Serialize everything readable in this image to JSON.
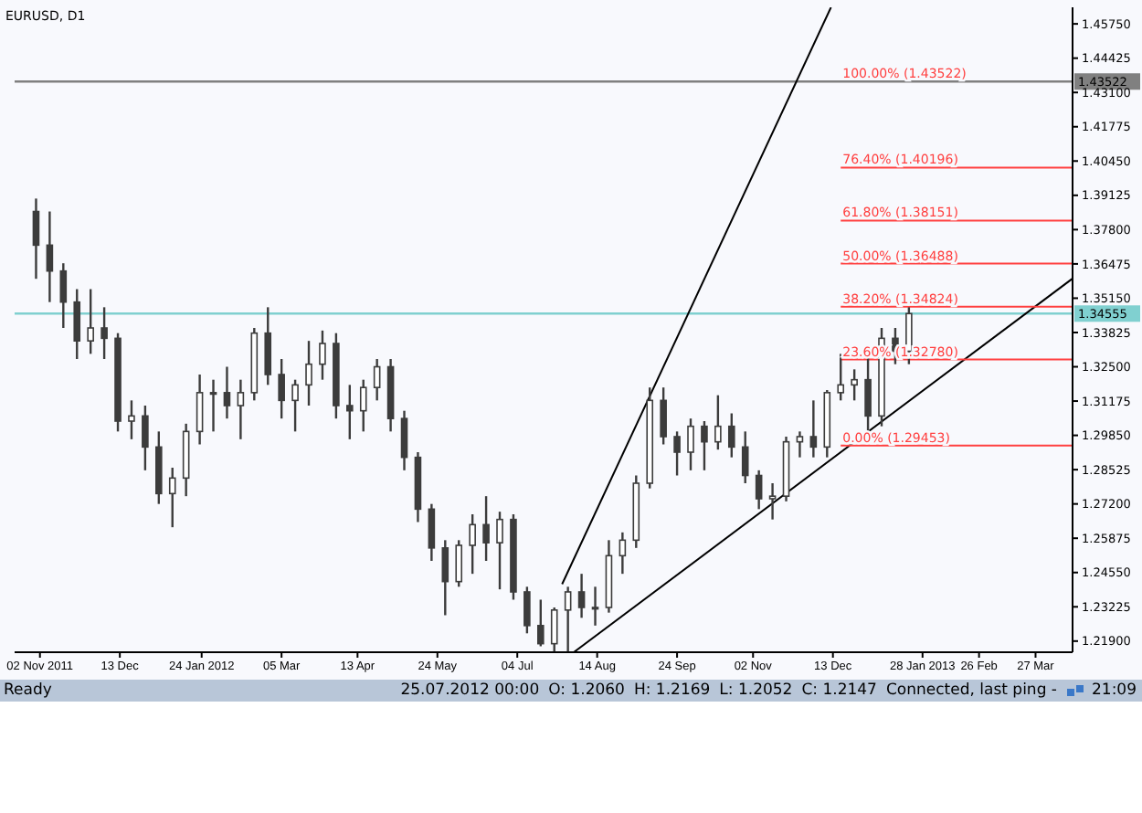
{
  "chart_data": {
    "type": "candlestick",
    "title": "EURUSD, D1",
    "color": "#3c3c3c",
    "x": [
      "2011-10-31",
      "2011-11-07",
      "2011-11-14",
      "2011-11-21",
      "2011-11-28",
      "2011-12-05",
      "2011-12-12",
      "2011-12-19",
      "2011-12-26",
      "2012-01-02",
      "2012-01-09",
      "2012-01-16",
      "2012-01-23",
      "2012-01-30",
      "2012-02-06",
      "2012-02-13",
      "2012-02-20",
      "2012-02-27",
      "2012-03-05",
      "2012-03-12",
      "2012-03-19",
      "2012-03-26",
      "2012-04-02",
      "2012-04-09",
      "2012-04-16",
      "2012-04-23",
      "2012-04-30",
      "2012-05-07",
      "2012-05-14",
      "2012-05-21",
      "2012-05-28",
      "2012-06-04",
      "2012-06-11",
      "2012-06-18",
      "2012-06-25",
      "2012-07-02",
      "2012-07-09",
      "2012-07-16",
      "2012-07-23",
      "2012-07-30",
      "2012-08-06",
      "2012-08-13",
      "2012-08-20",
      "2012-08-27",
      "2012-09-03",
      "2012-09-10",
      "2012-09-17",
      "2012-09-24",
      "2012-10-01",
      "2012-10-08",
      "2012-10-15",
      "2012-10-22",
      "2012-10-29",
      "2012-11-05",
      "2012-11-12",
      "2012-11-19",
      "2012-11-26",
      "2012-12-03",
      "2012-12-10",
      "2012-12-17",
      "2012-12-24",
      "2012-12-31",
      "2013-01-07",
      "2013-01-14",
      "2013-01-21"
    ],
    "ohlc": [
      [
        1.385,
        1.39,
        1.359,
        1.372
      ],
      [
        1.372,
        1.385,
        1.35,
        1.362
      ],
      [
        1.362,
        1.365,
        1.34,
        1.35
      ],
      [
        1.35,
        1.355,
        1.328,
        1.335
      ],
      [
        1.335,
        1.355,
        1.33,
        1.34
      ],
      [
        1.34,
        1.348,
        1.328,
        1.336
      ],
      [
        1.336,
        1.338,
        1.3,
        1.304
      ],
      [
        1.304,
        1.312,
        1.297,
        1.306
      ],
      [
        1.306,
        1.31,
        1.285,
        1.294
      ],
      [
        1.294,
        1.3,
        1.272,
        1.276
      ],
      [
        1.276,
        1.286,
        1.263,
        1.282
      ],
      [
        1.282,
        1.303,
        1.275,
        1.3
      ],
      [
        1.3,
        1.322,
        1.295,
        1.315
      ],
      [
        1.315,
        1.32,
        1.3,
        1.315
      ],
      [
        1.315,
        1.325,
        1.305,
        1.31
      ],
      [
        1.31,
        1.32,
        1.297,
        1.315
      ],
      [
        1.315,
        1.34,
        1.312,
        1.338
      ],
      [
        1.338,
        1.348,
        1.318,
        1.322
      ],
      [
        1.322,
        1.328,
        1.305,
        1.312
      ],
      [
        1.312,
        1.32,
        1.3,
        1.318
      ],
      [
        1.318,
        1.335,
        1.31,
        1.326
      ],
      [
        1.326,
        1.339,
        1.32,
        1.334
      ],
      [
        1.334,
        1.338,
        1.305,
        1.31
      ],
      [
        1.31,
        1.318,
        1.297,
        1.308
      ],
      [
        1.308,
        1.32,
        1.3,
        1.317
      ],
      [
        1.317,
        1.328,
        1.312,
        1.325
      ],
      [
        1.325,
        1.328,
        1.3,
        1.305
      ],
      [
        1.305,
        1.308,
        1.285,
        1.29
      ],
      [
        1.29,
        1.292,
        1.265,
        1.27
      ],
      [
        1.27,
        1.272,
        1.25,
        1.255
      ],
      [
        1.255,
        1.258,
        1.229,
        1.242
      ],
      [
        1.242,
        1.258,
        1.24,
        1.256
      ],
      [
        1.256,
        1.268,
        1.245,
        1.264
      ],
      [
        1.264,
        1.275,
        1.25,
        1.257
      ],
      [
        1.257,
        1.269,
        1.239,
        1.266
      ],
      [
        1.266,
        1.268,
        1.235,
        1.238
      ],
      [
        1.238,
        1.24,
        1.222,
        1.225
      ],
      [
        1.225,
        1.235,
        1.217,
        1.218
      ],
      [
        1.218,
        1.232,
        1.215,
        1.231
      ],
      [
        1.231,
        1.24,
        1.215,
        1.238
      ],
      [
        1.238,
        1.245,
        1.228,
        1.232
      ],
      [
        1.232,
        1.24,
        1.225,
        1.232
      ],
      [
        1.232,
        1.258,
        1.23,
        1.252
      ],
      [
        1.252,
        1.261,
        1.245,
        1.258
      ],
      [
        1.258,
        1.283,
        1.255,
        1.28
      ],
      [
        1.28,
        1.317,
        1.278,
        1.312
      ],
      [
        1.312,
        1.317,
        1.295,
        1.298
      ],
      [
        1.298,
        1.3,
        1.283,
        1.292
      ],
      [
        1.292,
        1.305,
        1.285,
        1.302
      ],
      [
        1.302,
        1.304,
        1.285,
        1.296
      ],
      [
        1.296,
        1.314,
        1.293,
        1.302
      ],
      [
        1.302,
        1.307,
        1.29,
        1.294
      ],
      [
        1.294,
        1.3,
        1.28,
        1.283
      ],
      [
        1.283,
        1.285,
        1.27,
        1.274
      ],
      [
        1.274,
        1.28,
        1.266,
        1.275
      ],
      [
        1.275,
        1.298,
        1.273,
        1.296
      ],
      [
        1.296,
        1.3,
        1.29,
        1.298
      ],
      [
        1.298,
        1.312,
        1.29,
        1.294
      ],
      [
        1.294,
        1.316,
        1.29,
        1.315
      ],
      [
        1.315,
        1.33,
        1.312,
        1.318
      ],
      [
        1.318,
        1.324,
        1.312,
        1.32
      ],
      [
        1.32,
        1.33,
        1.299,
        1.306
      ],
      [
        1.306,
        1.34,
        1.302,
        1.336
      ],
      [
        1.336,
        1.34,
        1.326,
        1.331
      ],
      [
        1.331,
        1.348,
        1.326,
        1.34555
      ]
    ],
    "series": [
      {
        "type": "line",
        "color": "#000000",
        "x": [
          "2012-07-27",
          "2012-12-12"
        ],
        "values": [
          1.241,
          1.4639
        ]
      },
      {
        "type": "line",
        "color": "#000000",
        "x": [
          "2012-08-02",
          "2013-04-15"
        ],
        "values": [
          1.2147,
          1.3591
        ]
      },
      {
        "type": "line",
        "name": "76.40% (1.40196)",
        "color": "#ff4040",
        "x": [
          "2012-12-17",
          "2013-04-15"
        ],
        "values": [
          1.40196,
          1.40196
        ]
      },
      {
        "type": "line",
        "name": "61.80% (1.38151)",
        "color": "#ff4040",
        "x": [
          "2012-12-17",
          "2013-04-15"
        ],
        "values": [
          1.38151,
          1.38151
        ]
      },
      {
        "type": "line",
        "name": "50.00% (1.36488)",
        "color": "#ff4040",
        "x": [
          "2012-12-17",
          "2013-04-15"
        ],
        "values": [
          1.36488,
          1.36488
        ]
      },
      {
        "type": "line",
        "name": "38.20% (1.34824)",
        "color": "#ff4040",
        "x": [
          "2012-12-17",
          "2013-04-15"
        ],
        "values": [
          1.34824,
          1.34824
        ]
      },
      {
        "type": "line",
        "name": "23.60% (1.32780)",
        "color": "#ff4040",
        "x": [
          "2012-12-17",
          "2013-04-15"
        ],
        "values": [
          1.3278,
          1.3278
        ]
      },
      {
        "type": "line",
        "name": "0.00% (1.29453)",
        "color": "#ff4040",
        "x": [
          "2012-12-17",
          "2013-04-15"
        ],
        "values": [
          1.29453,
          1.29453
        ]
      }
    ],
    "ref_lines": [
      {
        "axis": "y",
        "value": 1.43522,
        "label": "1.43522",
        "color": "#808080"
      },
      {
        "axis": "y",
        "value": 1.34555,
        "label": "1.34555",
        "color": "#80d0d0"
      }
    ],
    "annotations": [
      {
        "text": "100.00% (1.43522)",
        "x": "2012-12-17",
        "y": 1.43522
      },
      "Ready",
      "25.07.2012 00:00",
      "O: 1.2060",
      "H: 1.2169",
      "L: 1.2052",
      "C: 1.2147",
      "Connected, last ping -",
      "21:09"
    ],
    "xlim": [
      "2011-10-20",
      "2013-04-15"
    ],
    "xticks": [
      {
        "value": "2011-11-02",
        "label": "02 Nov 2011"
      },
      {
        "value": "2011-12-13",
        "label": "13 Dec"
      },
      {
        "value": "2012-01-24",
        "label": "24 Jan 2012"
      },
      {
        "value": "2012-03-05",
        "label": "05 Mar"
      },
      {
        "value": "2012-04-13",
        "label": "13 Apr"
      },
      {
        "value": "2012-05-24",
        "label": "24 May"
      },
      {
        "value": "2012-07-04",
        "label": "04 Jul"
      },
      {
        "value": "2012-08-14",
        "label": "14 Aug"
      },
      {
        "value": "2012-09-24",
        "label": "24 Sep"
      },
      {
        "value": "2012-11-02",
        "label": "02 Nov"
      },
      {
        "value": "2012-12-13",
        "label": "13 Dec"
      },
      {
        "value": "2013-01-28",
        "label": "28 Jan 2013"
      },
      {
        "value": "2013-02-26",
        "label": "26 Feb"
      },
      {
        "value": "2013-03-27",
        "label": "27 Mar"
      }
    ],
    "ylim": [
      1.2147,
      1.4639
    ],
    "yticks": [
      {
        "value": 1.219,
        "label": "1.21900"
      },
      {
        "value": 1.23225,
        "label": "1.23225"
      },
      {
        "value": 1.2455,
        "label": "1.24550"
      },
      {
        "value": 1.25875,
        "label": "1.25875"
      },
      {
        "value": 1.272,
        "label": "1.27200"
      },
      {
        "value": 1.28525,
        "label": "1.28525"
      },
      {
        "value": 1.2985,
        "label": "1.29850"
      },
      {
        "value": 1.31175,
        "label": "1.31175"
      },
      {
        "value": 1.325,
        "label": "1.32500"
      },
      {
        "value": 1.33825,
        "label": "1.33825"
      },
      {
        "value": 1.3515,
        "label": "1.35150"
      },
      {
        "value": 1.36475,
        "label": "1.36475"
      },
      {
        "value": 1.378,
        "label": "1.37800"
      },
      {
        "value": 1.39125,
        "label": "1.39125"
      },
      {
        "value": 1.4045,
        "label": "1.40450"
      },
      {
        "value": 1.41775,
        "label": "1.41775"
      },
      {
        "value": 1.431,
        "label": "1.43100"
      },
      {
        "value": 1.44425,
        "label": "1.44425"
      },
      {
        "value": 1.4575,
        "label": "1.45750"
      }
    ],
    "grid": false,
    "legend": false
  }
}
